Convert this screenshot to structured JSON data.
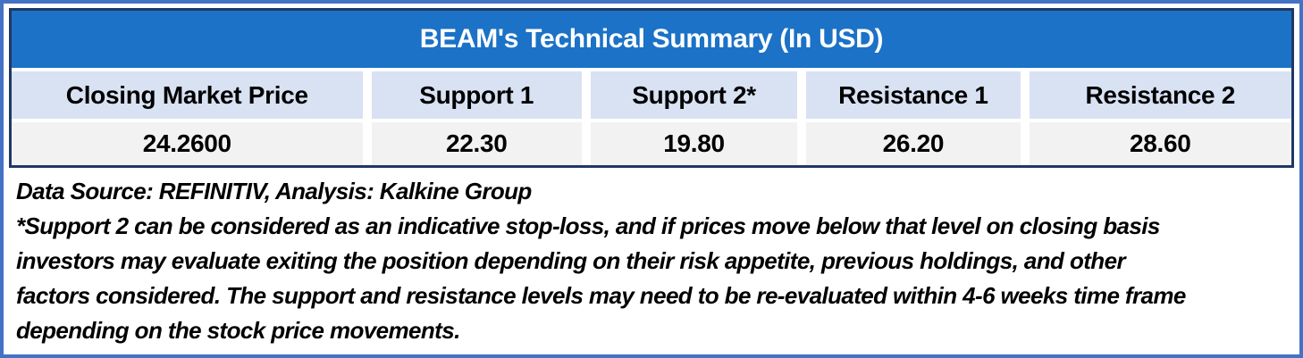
{
  "table": {
    "title": "BEAM's Technical Summary (In USD)",
    "columns": [
      {
        "header": "Closing Market Price",
        "value": "24.2600"
      },
      {
        "header": "Support 1",
        "value": "22.30"
      },
      {
        "header": "Support 2*",
        "value": "19.80"
      },
      {
        "header": "Resistance 1",
        "value": "26.20"
      },
      {
        "header": "Resistance 2",
        "value": "28.60"
      }
    ]
  },
  "footnotes": {
    "source_line": "Data Source: REFINITIV, Analysis: Kalkine Group",
    "disclaimer_lines": [
      "*Support 2 can be considered as an indicative stop-loss, and if prices move below that level on closing basis",
      "investors may evaluate exiting the position depending on their risk appetite, previous holdings, and other",
      "factors considered. The support and resistance levels may need to be re-evaluated within 4-6 weeks time frame",
      "depending on the stock price movements."
    ]
  },
  "colors": {
    "title_bar_blue": "#1B72C6",
    "header_cell_blue": "#D9E2F3",
    "value_cell_gray": "#F2F2F2",
    "table_border_navy": "#1F3864",
    "outer_border_blue": "#4472C4",
    "title_text": "#FFFFFF",
    "body_text": "#000000"
  }
}
